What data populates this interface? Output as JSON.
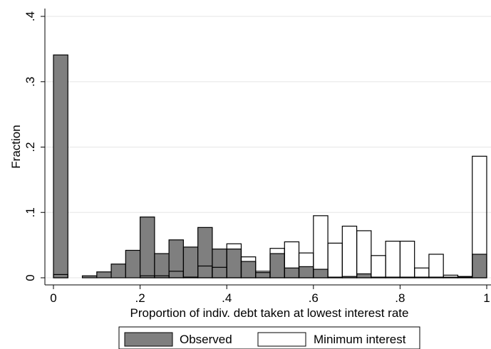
{
  "chart_data": {
    "type": "bar",
    "bin_width": 0.0333,
    "xlim": [
      0,
      1
    ],
    "ylim": [
      0,
      0.4
    ],
    "xticks": [
      0,
      0.2,
      0.4,
      0.6,
      0.8,
      1
    ],
    "xtick_labels": [
      "0",
      ".2",
      ".4",
      ".6",
      ".8",
      "1"
    ],
    "yticks": [
      0,
      0.1,
      0.2,
      0.3,
      0.4
    ],
    "ytick_labels": [
      "0",
      ".1",
      ".2",
      ".3",
      ".4"
    ],
    "xlabel": "Proportion of indiv. debt taken at lowest interest rate",
    "ylabel": "Fraction",
    "grid": true,
    "legend_position": "bottom",
    "colors": {
      "observed_fill": "#7f7f7f",
      "minimum_fill": "#ffffff",
      "edge": "#000000",
      "grid": "#e6e6e6"
    },
    "series": [
      {
        "name": "Observed",
        "style": "filled",
        "x": [
          0.0167,
          0.0833,
          0.1167,
          0.15,
          0.1833,
          0.2167,
          0.25,
          0.2833,
          0.3167,
          0.35,
          0.3833,
          0.4167,
          0.45,
          0.4833,
          0.5167,
          0.55,
          0.5833,
          0.6167,
          0.65,
          0.6833,
          0.7167,
          0.75,
          0.7833,
          0.8167,
          0.85,
          0.8833,
          0.9167,
          0.95,
          0.9833
        ],
        "values": [
          0.341,
          0.003,
          0.009,
          0.021,
          0.042,
          0.093,
          0.037,
          0.058,
          0.047,
          0.077,
          0.044,
          0.044,
          0.025,
          0.008,
          0.037,
          0.015,
          0.017,
          0.013,
          0.001,
          0.002,
          0.006,
          0.001,
          0.001,
          0.001,
          0.001,
          0.001,
          0.001,
          0.001,
          0.036
        ]
      },
      {
        "name": "Minimum interest",
        "style": "outline",
        "x": [
          0.0167,
          0.2167,
          0.25,
          0.2833,
          0.3167,
          0.35,
          0.3833,
          0.4167,
          0.45,
          0.4833,
          0.5167,
          0.55,
          0.5833,
          0.6167,
          0.65,
          0.6833,
          0.7167,
          0.75,
          0.7833,
          0.8167,
          0.85,
          0.8833,
          0.9167,
          0.95,
          0.9833
        ],
        "values": [
          0.005,
          0.003,
          0.003,
          0.01,
          0.001,
          0.018,
          0.016,
          0.052,
          0.032,
          0.01,
          0.045,
          0.055,
          0.038,
          0.095,
          0.053,
          0.079,
          0.072,
          0.034,
          0.056,
          0.056,
          0.015,
          0.036,
          0.004,
          0.002,
          0.186
        ]
      }
    ]
  }
}
